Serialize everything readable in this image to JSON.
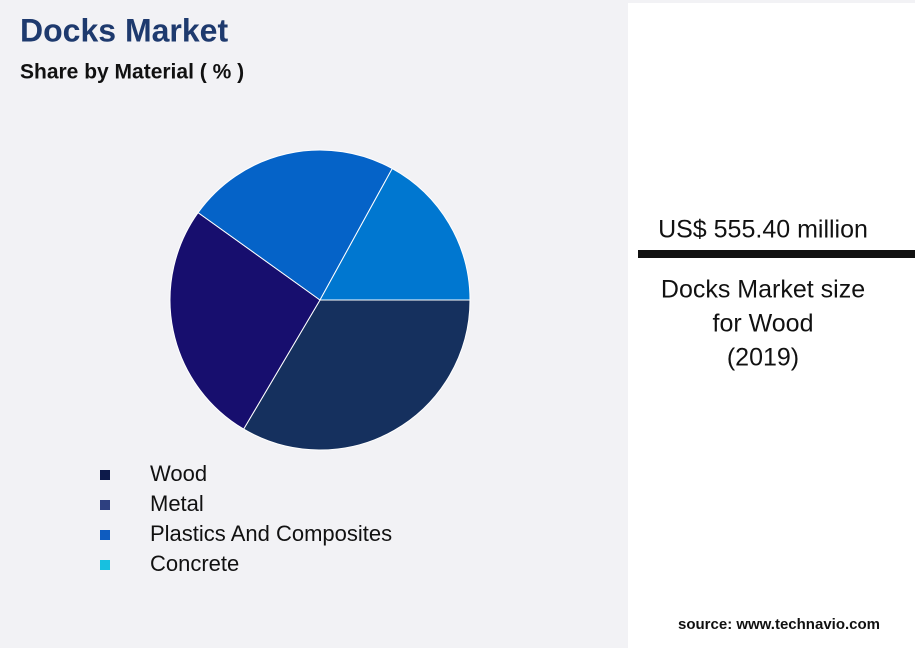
{
  "chart_data": {
    "type": "pie",
    "title": "Docks Market",
    "subtitle": "Share by Material ( % )",
    "categories": [
      "Wood",
      "Metal",
      "Plastics And Composites",
      "Concrete"
    ],
    "values": [
      33.5,
      26.4,
      23.1,
      17.0
    ],
    "colors": [
      "#15305e",
      "#170e6e",
      "#0563c8",
      "#0077d0"
    ],
    "legend_colors": [
      "#0d1a4a",
      "#2e4080",
      "#0e5cc0",
      "#17c0e0"
    ]
  },
  "callout": {
    "value": "US$ 555.40 million",
    "lines": [
      "Docks Market size",
      "for Wood",
      "(2019)"
    ]
  },
  "source": "source: www.technavio.com"
}
